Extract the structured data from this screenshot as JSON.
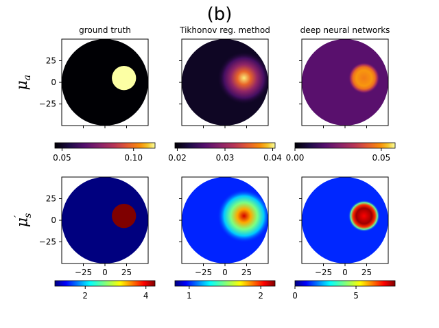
{
  "figure_label": "(b)",
  "chart_data": {
    "type": "heatmap",
    "column_titles": [
      "ground truth",
      "Tikhonov reg. method",
      "deep neural networks"
    ],
    "row_labels": [
      {
        "base": "μ",
        "sub": "a",
        "sup": ""
      },
      {
        "base": "μ",
        "sub": "s",
        "sup": "′"
      }
    ],
    "axis_ticks": {
      "y": [
        "25",
        "0",
        "−25"
      ],
      "x": [
        "−25",
        "0",
        "25"
      ]
    },
    "domain": {
      "shape": "disk",
      "radius": 50,
      "inclusion_center_x": 22,
      "inclusion_center_y": 5,
      "inclusion_radius": 14
    },
    "panels": [
      {
        "row": "mu_a",
        "col": "ground truth",
        "colormap": "inferno",
        "vmin": 0.045,
        "vmax": 0.115,
        "background": 0.045,
        "inclusion": 0.115,
        "ticks": [
          "0.05",
          "0.10"
        ],
        "tick_values": [
          0.05,
          0.1
        ]
      },
      {
        "row": "mu_a",
        "col": "Tikhonov reg. method",
        "colormap": "inferno",
        "vmin": 0.0195,
        "vmax": 0.0405,
        "background": 0.021,
        "inclusion": 0.04,
        "ticks": [
          "0.02",
          "0.03",
          "0.04"
        ],
        "tick_values": [
          0.02,
          0.03,
          0.04
        ]
      },
      {
        "row": "mu_a",
        "col": "deep neural networks",
        "colormap": "inferno",
        "vmin": 0.0,
        "vmax": 0.058,
        "background": 0.018,
        "inclusion": 0.05,
        "ticks": [
          "0.00",
          "0.05"
        ],
        "tick_values": [
          0.0,
          0.05
        ]
      },
      {
        "row": "mu_s",
        "col": "ground truth",
        "colormap": "jet",
        "vmin": 1.0,
        "vmax": 4.3,
        "background": 1.0,
        "inclusion": 4.3,
        "ticks": [
          "2",
          "4"
        ],
        "tick_values": [
          2,
          4
        ]
      },
      {
        "row": "mu_s",
        "col": "Tikhonov reg. method",
        "colormap": "jet",
        "vmin": 0.8,
        "vmax": 2.2,
        "background": 1.0,
        "inclusion": 2.1,
        "ticks": [
          "1",
          "2"
        ],
        "tick_values": [
          1,
          2
        ]
      },
      {
        "row": "mu_s",
        "col": "deep neural networks",
        "colormap": "jet",
        "vmin": 0.0,
        "vmax": 8.2,
        "background": 1.2,
        "inclusion": 8.0,
        "ticks": [
          "0",
          "5"
        ],
        "tick_values": [
          0,
          5
        ]
      }
    ]
  }
}
